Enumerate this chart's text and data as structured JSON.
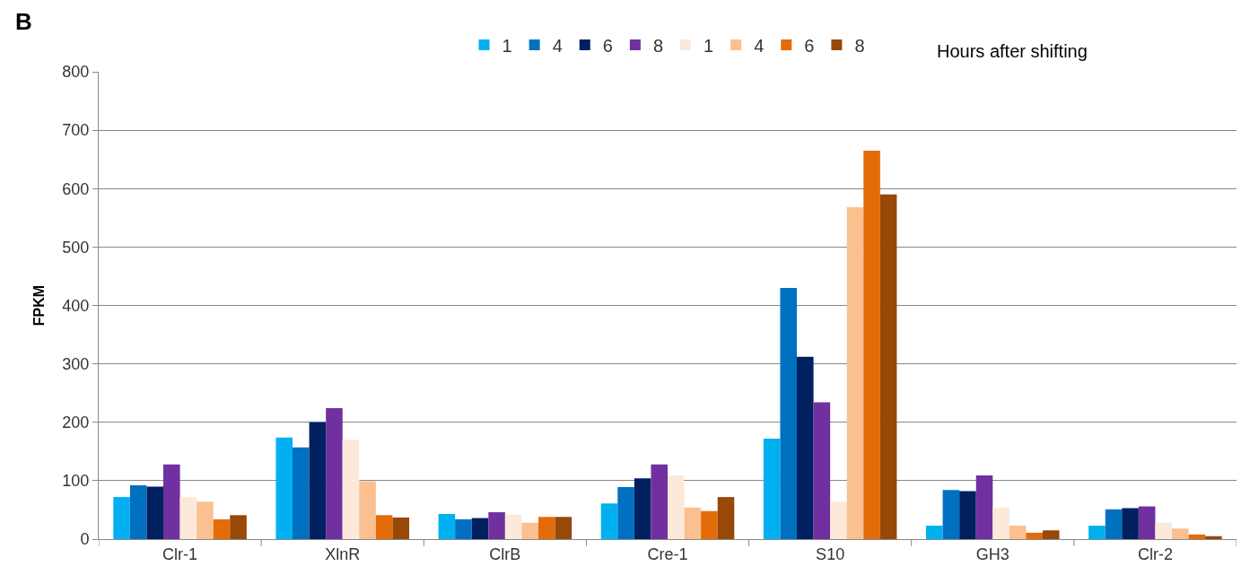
{
  "chart_data": {
    "type": "bar",
    "ylabel": "FPKM",
    "legend_title": "Hours after shifting",
    "annotations": [
      "B"
    ],
    "categories": [
      "Clr-1",
      "XlnR",
      "ClrB",
      "Cre-1",
      "S10",
      "GH3",
      "Clr-2"
    ],
    "series": [
      {
        "name": "1",
        "color": "#00b0f0",
        "values": [
          72,
          174,
          43,
          61,
          172,
          23,
          23
        ]
      },
      {
        "name": "4",
        "color": "#0070c0",
        "values": [
          92,
          157,
          34,
          89,
          430,
          84,
          51
        ]
      },
      {
        "name": "6",
        "color": "#002060",
        "values": [
          90,
          200,
          36,
          104,
          312,
          82,
          53
        ]
      },
      {
        "name": "8",
        "color": "#7030a0",
        "values": [
          128,
          224,
          46,
          128,
          234,
          109,
          56
        ]
      },
      {
        "name": "1",
        "color": "#fde9d9",
        "values": [
          72,
          170,
          42,
          109,
          64,
          54,
          28
        ]
      },
      {
        "name": "4",
        "color": "#fac090",
        "values": [
          64,
          99,
          28,
          54,
          568,
          23,
          18
        ]
      },
      {
        "name": "6",
        "color": "#e36c09",
        "values": [
          34,
          41,
          38,
          48,
          665,
          11,
          8
        ]
      },
      {
        "name": "8",
        "color": "#984807",
        "values": [
          41,
          37,
          38,
          72,
          590,
          15,
          5
        ]
      }
    ],
    "ylim": [
      0,
      800
    ],
    "yticks": [
      0,
      100,
      200,
      300,
      400,
      500,
      600,
      700,
      800
    ],
    "grid": "y",
    "legend": "top"
  }
}
